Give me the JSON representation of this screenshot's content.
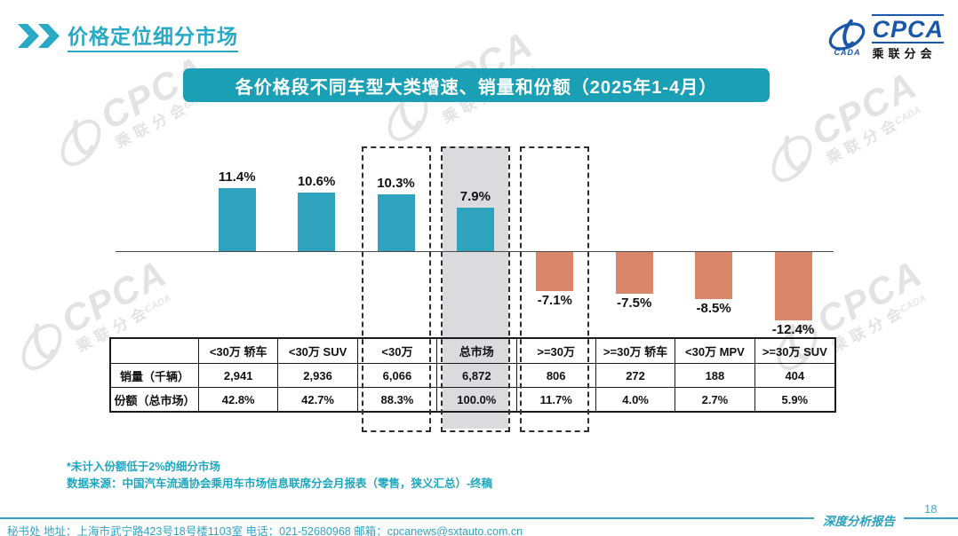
{
  "header": {
    "title": "价格定位细分市场",
    "logo": {
      "cpca": "CPCA",
      "cn": "乘联分会",
      "cada": "CADA"
    }
  },
  "banner": {
    "title": "各价格段不同车型大类增速、销量和份额（2025年1-4月）"
  },
  "chart_data": {
    "type": "bar",
    "title": "各价格段不同车型大类增速、销量和份额（2025年1-4月）",
    "categories": [
      "<30万 轿车",
      "<30万 SUV",
      "<30万",
      "总市场",
      ">=30万",
      ">=30万 轿车",
      "<30万 MPV",
      ">=30万 SUV"
    ],
    "values": [
      11.4,
      10.6,
      10.3,
      7.9,
      -7.1,
      -7.5,
      -8.5,
      -12.4
    ],
    "value_labels": [
      "11.4%",
      "10.6%",
      "10.3%",
      "7.9%",
      "-7.1%",
      "-7.5%",
      "-8.5%",
      "-12.4%"
    ],
    "unit": "%",
    "ylim": [
      -14,
      14
    ],
    "grid": false,
    "legend": "none",
    "positive_color": "#2fa3bd",
    "negative_color": "#d9866b",
    "highlight_dashed_categories": [
      "<30万",
      "总市场",
      ">=30万"
    ],
    "highlight_filled_category": "总市场",
    "highlight_fill_color": "#dbdbde",
    "table": {
      "corner_header": "",
      "row_headers": [
        "销量（千辆）",
        "份额（总市场）"
      ],
      "rows": [
        [
          "2,941",
          "2,936",
          "6,066",
          "6,872",
          "806",
          "272",
          "188",
          "404"
        ],
        [
          "42.8%",
          "42.7%",
          "88.3%",
          "100.0%",
          "11.7%",
          "4.0%",
          "2.7%",
          "5.9%"
        ]
      ]
    }
  },
  "footnotes": {
    "line1": "*未计入份额低于2%的细分市场",
    "line2": "数据来源：中国汽车流通协会乘用车市场信息联席分会月报表（零售，狭义汇总）-终稿"
  },
  "footer": {
    "contact": "秘书处  地址：上海市武宁路423号18号楼1103室 电话：021-52680968  邮箱：cpcanews@sxtauto.com.cn",
    "report_label": "深度分析报告",
    "page_number": "18"
  },
  "watermark": {
    "cpca": "CPCA",
    "cn": "乘联分会",
    "cada": "CADA"
  },
  "colors": {
    "accent_teal": "#28a9c6",
    "banner_teal": "#1b9fb4",
    "logo_blue": "#1a57a8",
    "positive_bar": "#2fa3bd",
    "negative_bar": "#d9866b",
    "highlight_gray": "#dbdbde"
  }
}
